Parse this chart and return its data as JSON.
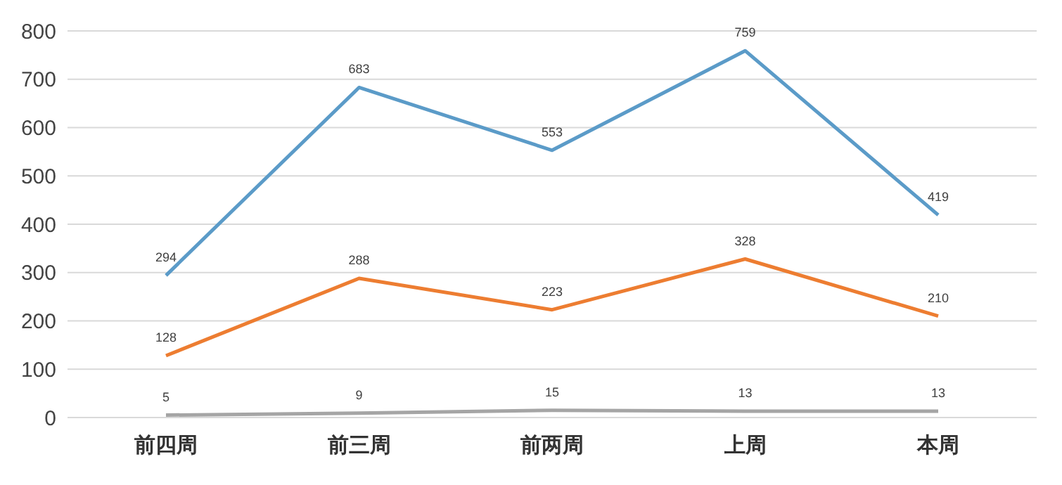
{
  "chart_data": {
    "type": "line",
    "categories": [
      "前四周",
      "前三周",
      "前两周",
      "上周",
      "本周"
    ],
    "series": [
      {
        "color": "#5b9bc8",
        "values": [
          294,
          683,
          553,
          759,
          419
        ]
      },
      {
        "color": "#ed7d31",
        "values": [
          128,
          288,
          223,
          328,
          210
        ]
      },
      {
        "color": "#a5a5a5",
        "values": [
          5,
          9,
          15,
          13,
          13
        ]
      }
    ],
    "ylim": [
      0,
      800
    ],
    "yticks": [
      0,
      100,
      200,
      300,
      400,
      500,
      600,
      700,
      800
    ],
    "grid": "y",
    "data_labels": true,
    "marker": "none"
  }
}
